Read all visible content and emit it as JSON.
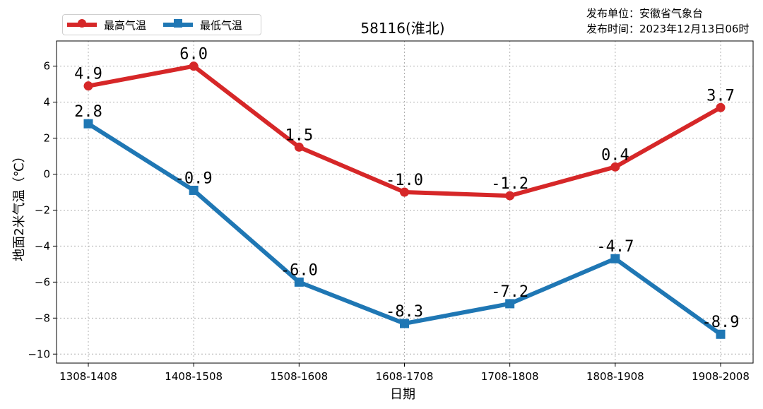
{
  "header": {
    "issuer": "发布单位：安徽省气象台",
    "issue_time": "发布时间：2023年12月13日06时"
  },
  "chart_data": {
    "type": "line",
    "title": "58116(淮北)",
    "xlabel": "日期",
    "ylabel": "地面2米气温（℃）",
    "categories": [
      "1308-1408",
      "1408-1508",
      "1508-1608",
      "1608-1708",
      "1708-1808",
      "1808-1908",
      "1908-2008"
    ],
    "ylim": [
      -10.5,
      7.4
    ],
    "yticks": [
      -10,
      -8,
      -6,
      -4,
      -2,
      0,
      2,
      4,
      6
    ],
    "grid": true,
    "legend_position": "upper-left",
    "series": [
      {
        "name": "最高气温",
        "color": "#d62728",
        "marker": "circle",
        "values": [
          4.9,
          6.0,
          1.5,
          -1.0,
          -1.2,
          0.4,
          3.7
        ],
        "labels": [
          "4.9",
          "6.0",
          "1.5",
          "-1.0",
          "-1.2",
          "0.4",
          "3.7"
        ]
      },
      {
        "name": "最低气温",
        "color": "#1f77b4",
        "marker": "square",
        "values": [
          2.8,
          -0.9,
          -6.0,
          -8.3,
          -7.2,
          -4.7,
          -8.9
        ],
        "labels": [
          "2.8",
          "-0.9",
          "-6.0",
          "-8.3",
          "-7.2",
          "-4.7",
          "-8.9"
        ]
      }
    ]
  }
}
